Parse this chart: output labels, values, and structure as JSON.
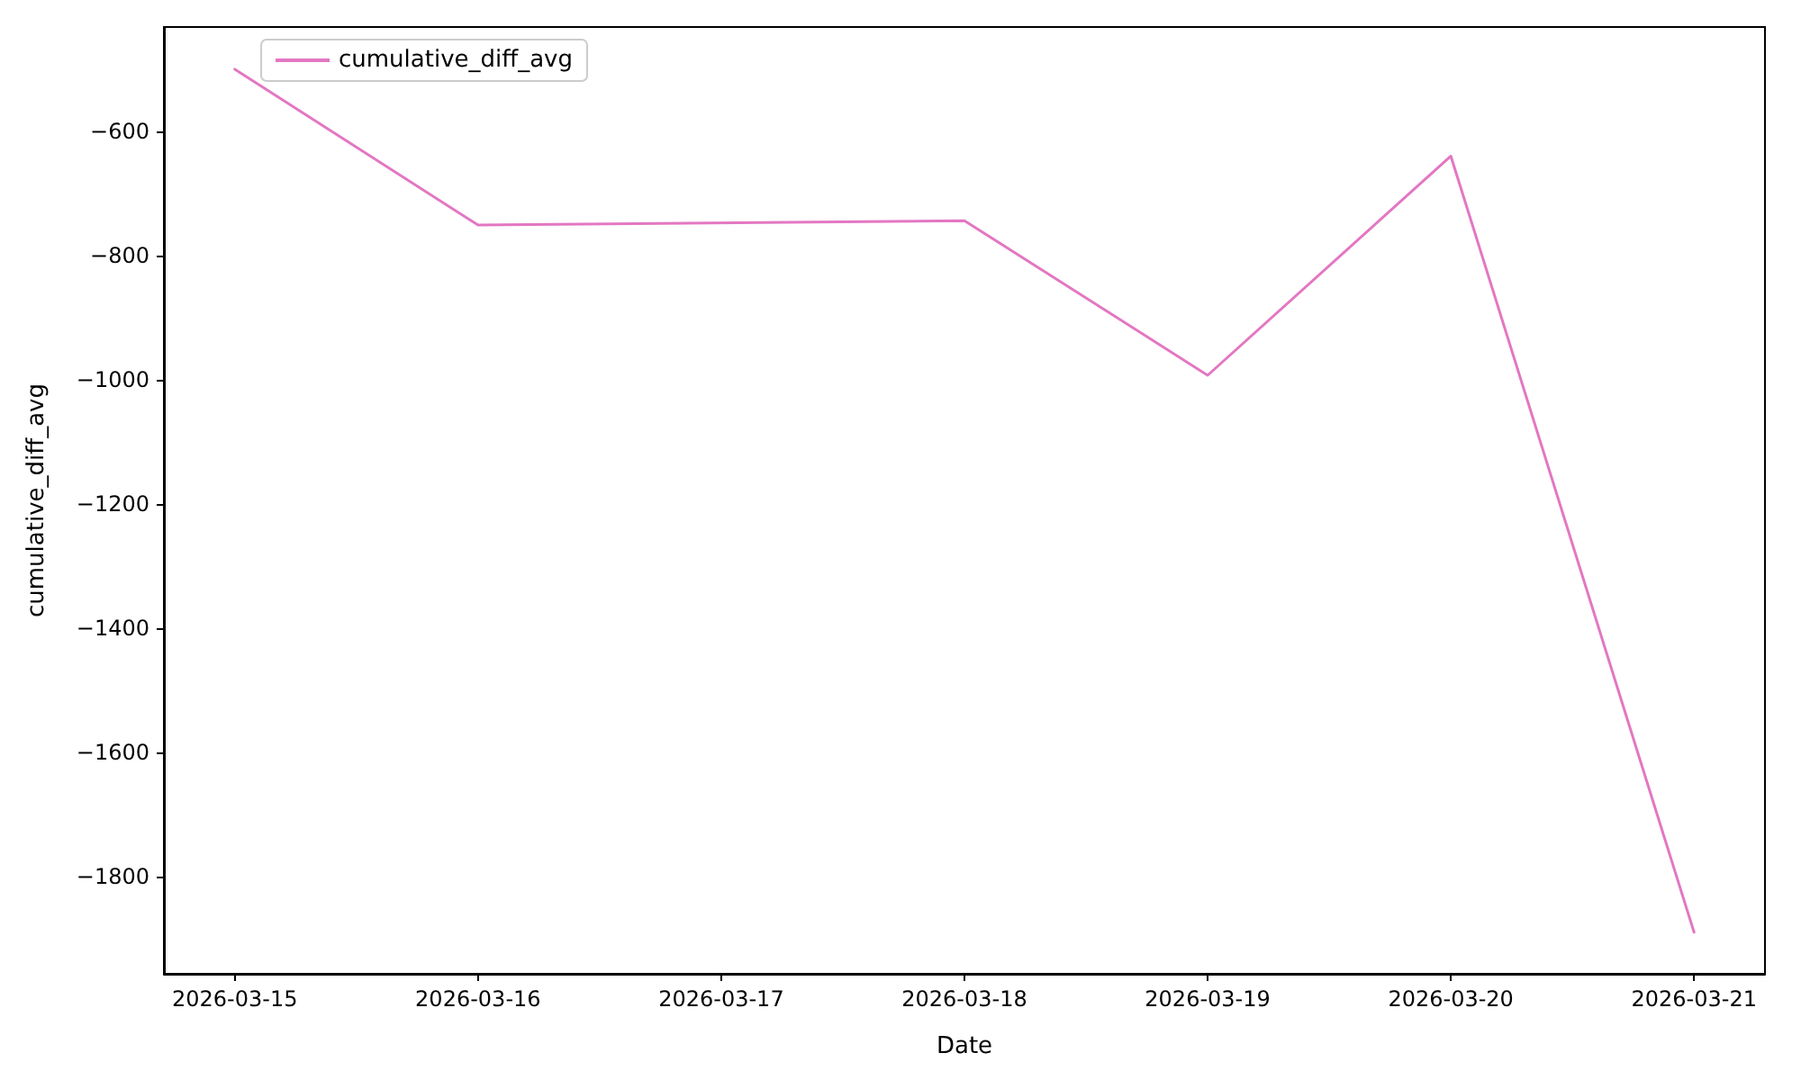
{
  "chart_data": {
    "type": "line",
    "xlabel": "Date",
    "ylabel": "cumulative_diff_avg",
    "x": [
      "2026-03-15",
      "2026-03-16",
      "2026-03-18",
      "2026-03-19",
      "2026-03-20",
      "2026-03-21"
    ],
    "series": [
      {
        "name": "cumulative_diff_avg",
        "color": "#e377c2",
        "values": [
          -500,
          -751,
          -744,
          -993,
          -640,
          -1890
        ]
      }
    ],
    "xlim": [
      "2026-03-14T17:00",
      "2026-03-21T07:00"
    ],
    "xticks": [
      "2026-03-15",
      "2026-03-16",
      "2026-03-17",
      "2026-03-18",
      "2026-03-19",
      "2026-03-20",
      "2026-03-21"
    ],
    "ylim": [
      -1957,
      -432
    ],
    "yticks": [
      -1800,
      -1600,
      -1400,
      -1200,
      -1000,
      -800,
      -600
    ],
    "grid": false,
    "legend": "top left",
    "marker": "none",
    "line_style": "solid"
  }
}
